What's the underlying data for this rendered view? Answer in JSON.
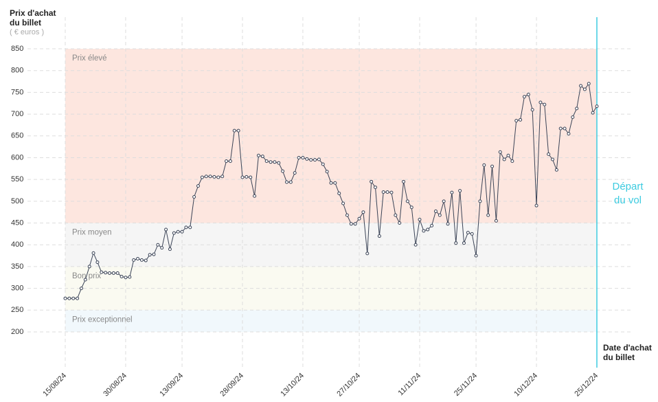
{
  "chart_data": {
    "type": "line",
    "y_title": "Prix d'achat du billet",
    "y_unit": "( € euros )",
    "x_title": "Date d'achat du billet",
    "marker_label": "Départ du vol",
    "marker_color": "#3ccbe0",
    "bands": [
      {
        "label": "Prix élevé",
        "from": 450,
        "to": 850,
        "color": "#fde6df"
      },
      {
        "label": "Prix moyen",
        "from": 350,
        "to": 450,
        "color": "#f5f5f5"
      },
      {
        "label": "Bon prix",
        "from": 250,
        "to": 350,
        "color": "#fafaf1"
      },
      {
        "label": "Prix exceptionnel",
        "from": 200,
        "to": 250,
        "color": "#f1f8fc"
      }
    ],
    "categories": [
      "15/08/24",
      null,
      null,
      null,
      null,
      null,
      null,
      null,
      null,
      null,
      null,
      null,
      null,
      null,
      null,
      "30/08/24",
      null,
      null,
      null,
      null,
      null,
      null,
      null,
      null,
      null,
      null,
      null,
      null,
      null,
      "13/09/24",
      null,
      null,
      null,
      null,
      null,
      null,
      null,
      null,
      null,
      null,
      null,
      null,
      null,
      null,
      "28/09/24",
      null,
      null,
      null,
      null,
      null,
      null,
      null,
      null,
      null,
      null,
      null,
      null,
      null,
      null,
      "13/10/24",
      null,
      null,
      null,
      null,
      null,
      null,
      null,
      null,
      null,
      null,
      null,
      null,
      null,
      "27/10/24",
      null,
      null,
      null,
      null,
      null,
      null,
      null,
      null,
      null,
      null,
      null,
      null,
      null,
      null,
      "11/11/24",
      null,
      null,
      null,
      null,
      null,
      null,
      null,
      null,
      null,
      null,
      null,
      null,
      null,
      "25/11/24",
      null,
      null,
      null,
      null,
      null,
      null,
      null,
      null,
      null,
      null,
      null,
      null,
      null,
      null,
      "10/12/24",
      null,
      null,
      null,
      null,
      null,
      null,
      null,
      null,
      null,
      null,
      null,
      null,
      null,
      null,
      "25/12/24"
    ],
    "series": [
      {
        "name": "Prix",
        "color": "#3a4356",
        "values": [
          277,
          277,
          277,
          277,
          300,
          320,
          350,
          381,
          360,
          337,
          336,
          335,
          335,
          335,
          327,
          325,
          326,
          365,
          368,
          365,
          364,
          377,
          378,
          400,
          393,
          435,
          390,
          427,
          430,
          430,
          440,
          440,
          510,
          535,
          555,
          557,
          557,
          556,
          555,
          557,
          592,
          592,
          662,
          662,
          555,
          556,
          555,
          512,
          605,
          603,
          592,
          590,
          590,
          588,
          569,
          544,
          544,
          565,
          600,
          600,
          597,
          595,
          595,
          596,
          585,
          568,
          542,
          542,
          518,
          495,
          468,
          448,
          448,
          460,
          475,
          380,
          545,
          532,
          420,
          521,
          521,
          520,
          468,
          450,
          545,
          500,
          486,
          400,
          458,
          432,
          435,
          444,
          477,
          468,
          500,
          448,
          520,
          404,
          524,
          404,
          428,
          425,
          375,
          500,
          583,
          468,
          580,
          455,
          613,
          596,
          605,
          592,
          685,
          687,
          740,
          745,
          710,
          490,
          727,
          722,
          608,
          596,
          572,
          667,
          667,
          655,
          693,
          713,
          765,
          757,
          770,
          703,
          718
        ]
      }
    ],
    "ylim": [
      200,
      850
    ],
    "yticks": [
      200,
      250,
      300,
      350,
      400,
      450,
      500,
      550,
      600,
      650,
      700,
      750,
      800,
      850
    ],
    "grid": true
  }
}
